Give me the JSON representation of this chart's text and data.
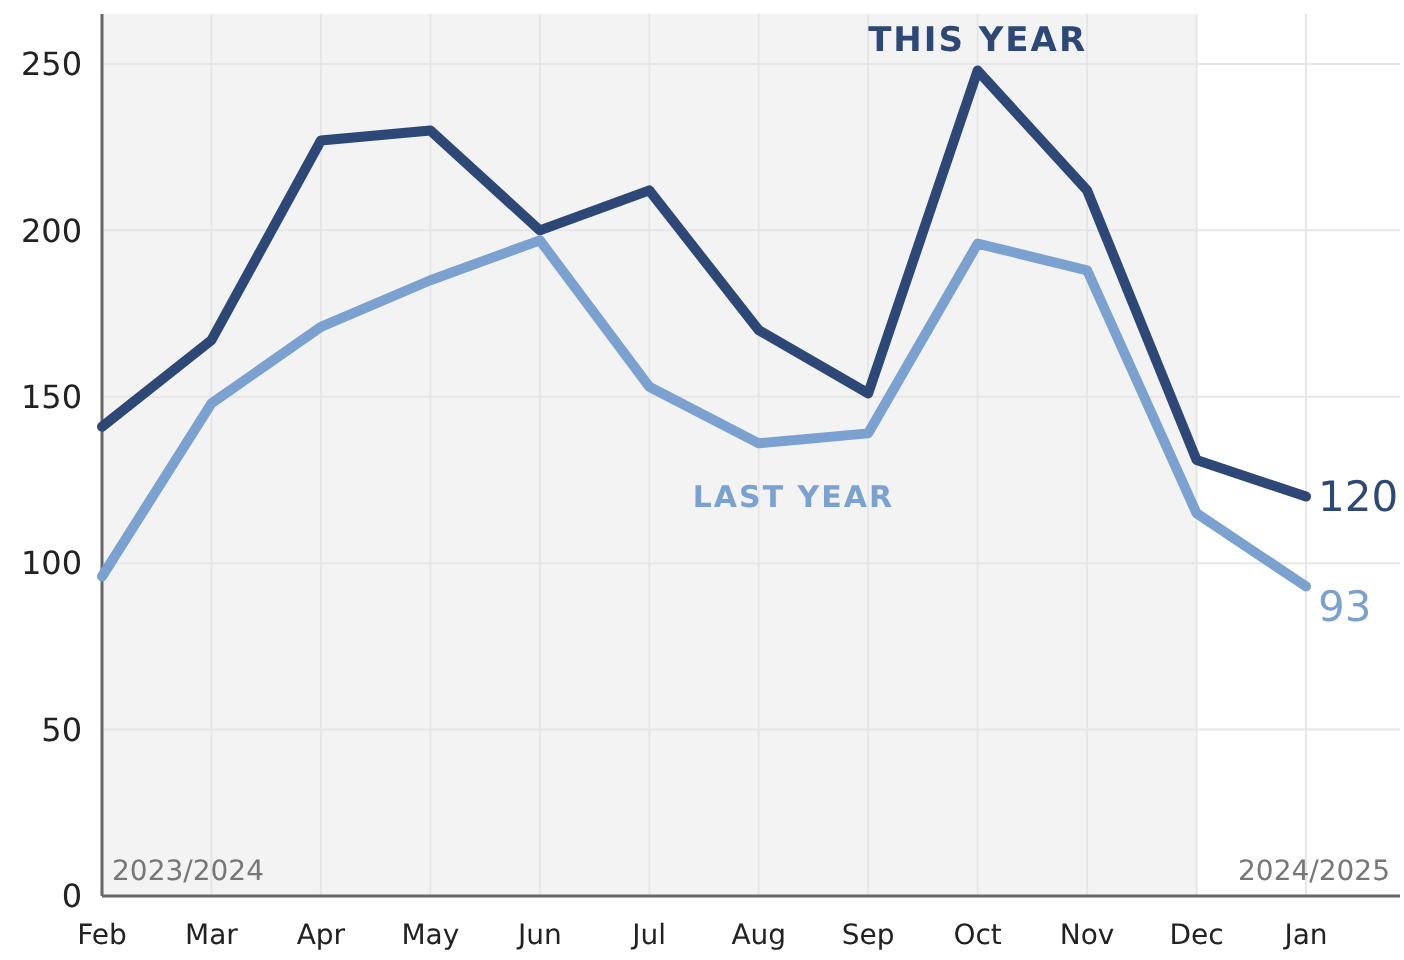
{
  "chart_data": {
    "type": "line",
    "categories": [
      "Feb",
      "Mar",
      "Apr",
      "May",
      "Jun",
      "Jul",
      "Aug",
      "Sep",
      "Oct",
      "Nov",
      "Dec",
      "Jan"
    ],
    "series": [
      {
        "name": "THIS YEAR",
        "color": "#2d4877",
        "values": [
          141,
          167,
          227,
          230,
          200,
          212,
          170,
          151,
          248,
          212,
          131,
          120
        ],
        "value_labels": [
          null,
          null,
          null,
          null,
          null,
          null,
          null,
          null,
          null,
          null,
          null,
          "120"
        ]
      },
      {
        "name": "LAST YEAR",
        "color": "#7ba1d1",
        "values": [
          96,
          148,
          171,
          185,
          197,
          153,
          136,
          139,
          196,
          188,
          115,
          93
        ],
        "value_labels": [
          null,
          null,
          null,
          null,
          null,
          null,
          null,
          null,
          null,
          null,
          null,
          "93"
        ]
      }
    ],
    "ylim": [
      0,
      265
    ],
    "yticks": [
      0,
      50,
      100,
      150,
      200,
      250
    ],
    "grid": true,
    "bands": [
      {
        "axis": "x",
        "from": "Feb",
        "to": "Dec",
        "color": "#f3f3f3"
      }
    ],
    "annotations": [
      "2023/2024",
      "2024/2025"
    ]
  }
}
